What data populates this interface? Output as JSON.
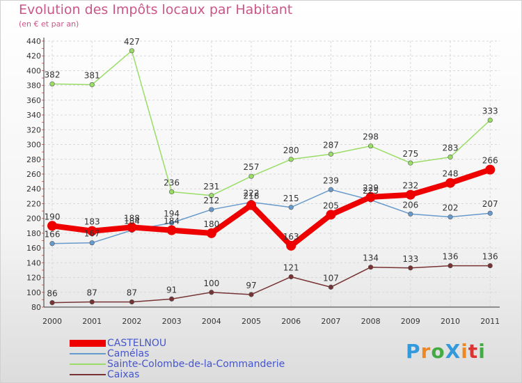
{
  "header": {
    "title": "Evolution des Impôts locaux par Habitant",
    "subtitle": "(en € et par an)"
  },
  "logo": {
    "text": "ProXiti",
    "letters": [
      {
        "ch": "P",
        "color": "#3399dd"
      },
      {
        "ch": "r",
        "color": "#ee8822"
      },
      {
        "ch": "o",
        "color": "#44aa44"
      },
      {
        "ch": "X",
        "color": "#3399dd"
      },
      {
        "ch": "i",
        "color": "#ee8822"
      },
      {
        "ch": "t",
        "color": "#dd3333"
      },
      {
        "ch": "i",
        "color": "#44aa44"
      }
    ]
  },
  "chart_data": {
    "type": "line",
    "title": "Evolution des Impôts locaux par Habitant",
    "subtitle": "(en € et par an)",
    "xlabel": "",
    "ylabel": "",
    "x": [
      "2000",
      "2001",
      "2002",
      "2003",
      "2004",
      "2005",
      "2006",
      "2007",
      "2008",
      "2009",
      "2010",
      "2011"
    ],
    "ylim": [
      80,
      440
    ],
    "yticks": [
      80,
      100,
      120,
      140,
      160,
      180,
      200,
      220,
      240,
      260,
      280,
      300,
      320,
      340,
      360,
      380,
      400,
      420,
      440
    ],
    "grid": true,
    "legend_position": "bottom-left",
    "series": [
      {
        "name": "CASTELNOU",
        "color": "#ee0000",
        "values": [
          190,
          183,
          188,
          184,
          180,
          218,
          163,
          205,
          229,
          232,
          248,
          266
        ]
      },
      {
        "name": "Camélas",
        "color": "#6699cc",
        "values": [
          166,
          167,
          184,
          194,
          212,
          222,
          215,
          239,
          225,
          206,
          202,
          207
        ]
      },
      {
        "name": "Sainte-Colombe-de-la-Commanderie",
        "color": "#99dd66",
        "values": [
          382,
          381,
          427,
          236,
          231,
          257,
          280,
          287,
          298,
          275,
          283,
          333
        ]
      },
      {
        "name": "Caixas",
        "color": "#773333",
        "values": [
          86,
          87,
          87,
          91,
          100,
          97,
          121,
          107,
          134,
          133,
          136,
          136
        ]
      }
    ]
  }
}
